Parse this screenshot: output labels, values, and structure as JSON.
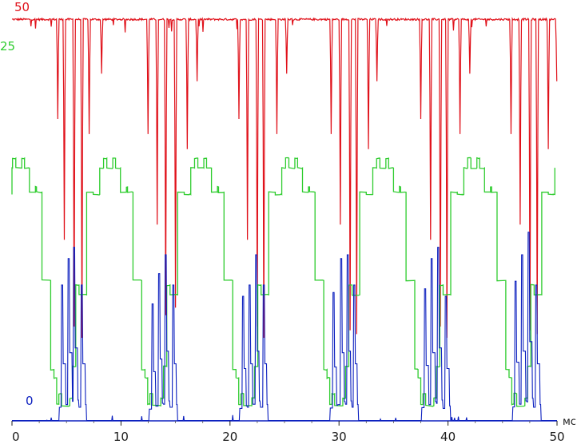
{
  "chart_data": {
    "type": "line",
    "x_unit_label": "мс",
    "xlim": [
      0,
      50
    ],
    "x_ticks": [
      0,
      10,
      20,
      30,
      40,
      50
    ],
    "grid": false,
    "legend": "none",
    "series": [
      {
        "label": "50",
        "color": "#e0111a",
        "description_values": {
          "baseline_level": 53.2,
          "spike_times": [
            4.2,
            4.8,
            5.7,
            6.4,
            7.1,
            8.2,
            12.5,
            13.3,
            14.1,
            15.0,
            16.1,
            17.0,
            20.8,
            21.6,
            22.5,
            23.1,
            24.3,
            25.2,
            29.3,
            30.1,
            31.0,
            31.6,
            32.7,
            33.5,
            37.5,
            38.4,
            39.3,
            39.9,
            41.1,
            42.0,
            45.8,
            46.6,
            47.5,
            48.2,
            49.2,
            50.0
          ],
          "spike_depths": [
            40.0,
            24.0,
            12.5,
            11.0,
            38.0,
            46.0,
            38.0,
            26.0,
            14.0,
            15.0,
            36.0,
            45.0,
            40.0,
            24.0,
            12.5,
            11.0,
            38.0,
            46.0,
            38.0,
            26.0,
            12.0,
            11.5,
            36.0,
            45.0,
            40.0,
            24.0,
            12.5,
            11.0,
            38.0,
            46.0,
            38.0,
            26.0,
            12.0,
            11.5,
            36.0,
            45.0
          ]
        }
      },
      {
        "label": "25",
        "color": "#2ecc2e",
        "description_values": {
          "period_ms": 8.35,
          "plateau_high": 33.5,
          "shoulder_high": 30.3,
          "mid_level": 18.6,
          "mid_low_level": 16.7,
          "low_level": 1.9,
          "first_high_start": 0.4,
          "levels_sequence": [
            [
              0.0,
              30.0
            ],
            [
              0.4,
              33.0
            ],
            [
              1.4,
              34.5
            ],
            [
              2.8,
              30.3
            ],
            [
              3.3,
              30.3
            ],
            [
              3.5,
              18.6
            ],
            [
              4.1,
              18.6
            ],
            [
              4.2,
              5.7
            ],
            [
              4.5,
              2.0
            ],
            [
              6.2,
              2.0
            ],
            [
              6.6,
              16.7
            ],
            [
              7.0,
              16.7
            ],
            [
              7.9,
              16.7
            ],
            [
              8.0,
              30.3
            ],
            [
              8.9,
              30.3
            ],
            [
              9.2,
              33.5
            ],
            [
              10.3,
              33.5
            ],
            [
              11.0,
              30.3
            ],
            [
              11.7,
              30.3
            ],
            [
              11.9,
              18.6
            ]
          ]
        }
      },
      {
        "label": "0",
        "color": "#0b1fbf",
        "description_values": {
          "baseline_level": 0.0,
          "peak_times": [
            4.6,
            5.2,
            5.7,
            6.4,
            12.9,
            13.5,
            14.1,
            14.8,
            21.2,
            21.8,
            22.4,
            23.1,
            29.5,
            30.2,
            30.8,
            31.4,
            37.9,
            38.5,
            39.1,
            39.8,
            46.2,
            46.8,
            47.4,
            48.1
          ],
          "peak_values": [
            18.0,
            21.5,
            23.0,
            18.0,
            15.5,
            19.5,
            22.0,
            18.0,
            16.5,
            18.0,
            22.0,
            18.0,
            17.0,
            21.5,
            22.0,
            18.0,
            17.5,
            21.5,
            23.0,
            16.5,
            18.5,
            22.0,
            25.0,
            18.0
          ]
        }
      }
    ]
  }
}
